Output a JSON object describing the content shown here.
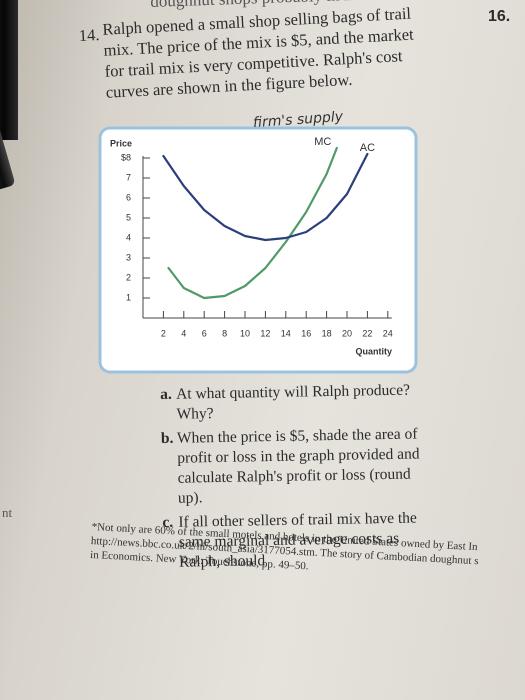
{
  "header": {
    "fragment": "doughnut shops probably in how?",
    "page_number": "16."
  },
  "question": {
    "number": "14.",
    "text": "Ralph opened a small shop selling bags of trail mix. The price of the mix is $5, and the market for trail mix is very competitive. Ralph's cost curves are shown in the figure below."
  },
  "figure": {
    "annotation": "firm's supply",
    "chart_data": {
      "type": "line",
      "ylabel": "Price",
      "xlabel": "Quantity",
      "xlim": [
        0,
        25
      ],
      "ylim": [
        0,
        8.6
      ],
      "xticks": [
        2,
        4,
        6,
        8,
        10,
        12,
        14,
        16,
        18,
        20,
        22,
        24
      ],
      "yticks": [
        1,
        2,
        3,
        4,
        5,
        6,
        7,
        {
          "value": 8,
          "label": "$8"
        }
      ],
      "series": [
        {
          "name": "MC",
          "color": "#4f9a68",
          "x": [
            2.5,
            4,
            6,
            8,
            10,
            12,
            14,
            16,
            18,
            19
          ],
          "values": [
            2.5,
            1.5,
            1,
            1.1,
            1.6,
            2.5,
            3.8,
            5.3,
            7.2,
            8.5
          ]
        },
        {
          "name": "AC",
          "color": "#2b3f7c",
          "x": [
            2,
            4,
            6,
            8,
            10,
            12,
            14,
            16,
            18,
            20,
            22
          ],
          "values": [
            8.1,
            6.6,
            5.4,
            4.6,
            4.1,
            3.9,
            4,
            4.3,
            5,
            6.2,
            8.2
          ]
        }
      ]
    }
  },
  "parts": [
    {
      "label": "a.",
      "text": "At what quantity will Ralph produce? Why?"
    },
    {
      "label": "b.",
      "text": "When the price is $5, shade the area of profit or loss in the graph provided and calculate Ralph's profit or loss (round up)."
    },
    {
      "label": "c.",
      "text": "If all other sellers of trail mix have the same marginal and average costs as Ralph, should"
    }
  ],
  "footnote": [
    "*Not only are 60% of the small motels and hotels in the United States owned by East In",
    "http://news.bbc.co.uk/2/hi/south_asia/3177054.stm. The story of Cambodian doughnut s",
    "in Economics. New York: Touchstone, pp. 49–50."
  ],
  "margin_text": "nt"
}
